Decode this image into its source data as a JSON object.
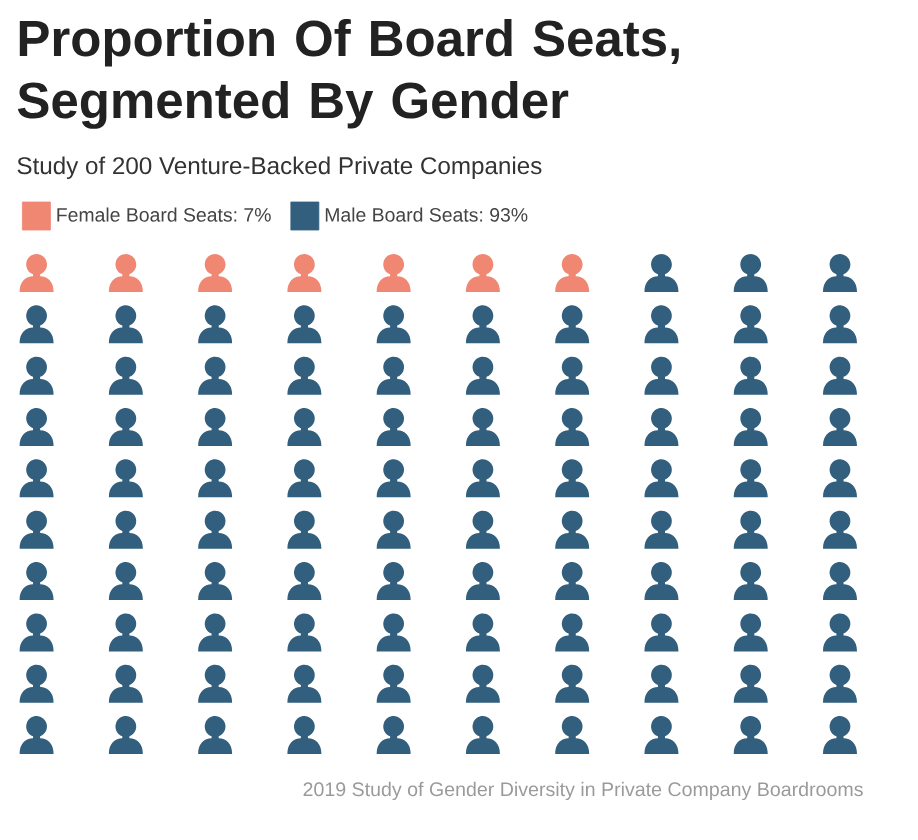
{
  "chart_data": {
    "type": "other",
    "title": "Proportion Of Board Seats, Segmented By Gender",
    "subtitle": "Study of 200 Venture-Backed Private Companies",
    "annotations": [
      "2019 Study of Gender Diversity in Private Company Boardrooms"
    ],
    "series": [
      {
        "name": "Female Board Seats:",
        "color": "#f08773",
        "values": [
          7
        ],
        "value_labels": [
          "7%"
        ]
      },
      {
        "name": "Male Board Seats:",
        "color": "#325f7d",
        "values": [
          93
        ],
        "value_labels": [
          "93%"
        ]
      }
    ],
    "legend": "top left"
  }
}
